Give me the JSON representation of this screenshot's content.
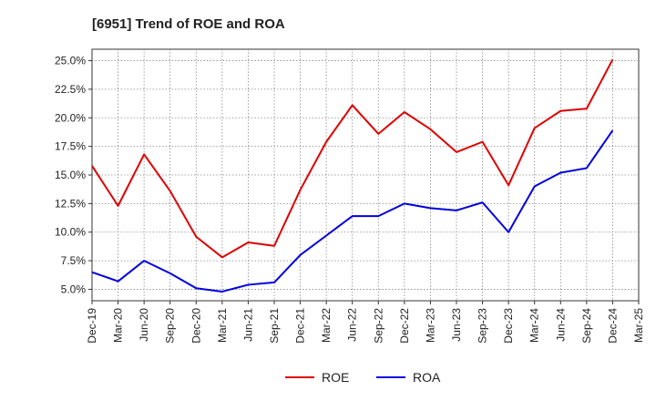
{
  "chart_data": {
    "type": "line",
    "title": "[6951]  Trend of ROE and ROA",
    "x": [
      "Dec-19",
      "Mar-20",
      "Jun-20",
      "Sep-20",
      "Dec-20",
      "Mar-21",
      "Jun-21",
      "Sep-21",
      "Dec-21",
      "Mar-22",
      "Jun-22",
      "Sep-22",
      "Dec-22",
      "Mar-23",
      "Jun-23",
      "Sep-23",
      "Dec-23",
      "Mar-24",
      "Jun-24",
      "Sep-24",
      "Dec-24",
      "Mar-25"
    ],
    "y_ticks": [
      "5.0%",
      "7.5%",
      "10.0%",
      "12.5%",
      "15.0%",
      "17.5%",
      "20.0%",
      "22.5%",
      "25.0%"
    ],
    "ylim": [
      4.0,
      26.0
    ],
    "grid": true,
    "legend_position": "bottom",
    "series": [
      {
        "name": "ROE",
        "color": "#e00000",
        "values": [
          15.8,
          12.3,
          16.8,
          13.6,
          9.6,
          7.8,
          9.1,
          8.8,
          13.7,
          17.9,
          21.1,
          18.6,
          20.5,
          19.0,
          17.0,
          17.9,
          14.1,
          19.1,
          20.6,
          20.8,
          25.1,
          null
        ]
      },
      {
        "name": "ROA",
        "color": "#0000e0",
        "values": [
          6.5,
          5.7,
          7.5,
          6.4,
          5.1,
          4.8,
          5.4,
          5.6,
          8.0,
          9.7,
          11.4,
          11.4,
          12.5,
          12.1,
          11.9,
          12.6,
          10.0,
          14.0,
          15.2,
          15.6,
          18.9,
          null
        ]
      }
    ]
  }
}
